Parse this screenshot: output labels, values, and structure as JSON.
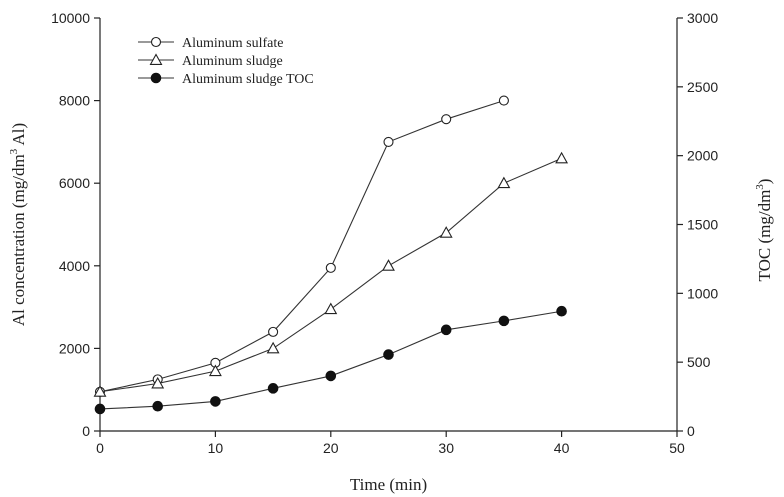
{
  "chart_data": {
    "type": "line",
    "xlabel": "Time (min)",
    "ylabel_left": {
      "text": "Al concentration (mg/dm",
      "sup": "3",
      "tail": " Al)"
    },
    "ylabel_right": {
      "text": "TOC (mg/dm",
      "sup": "3",
      "tail": ")"
    },
    "xlim": [
      0,
      50
    ],
    "ylim_left": [
      0,
      10000
    ],
    "ylim_right": [
      0,
      3000
    ],
    "x_ticks": [
      0,
      10,
      20,
      30,
      40,
      50
    ],
    "y_ticks_left": [
      0,
      2000,
      4000,
      6000,
      8000,
      10000
    ],
    "y_ticks_right": [
      0,
      500,
      1000,
      1500,
      2000,
      2500,
      3000
    ],
    "legend_position": "top-left",
    "grid": false,
    "series": [
      {
        "name": "Aluminum sulfate",
        "axis": "left",
        "marker": "circle-open",
        "x": [
          0,
          5,
          10,
          15,
          20,
          25,
          30,
          35
        ],
        "y": [
          950,
          1250,
          1650,
          2400,
          3950,
          7000,
          7550,
          8000
        ]
      },
      {
        "name": "Aluminum sludge",
        "axis": "left",
        "marker": "triangle-open",
        "x": [
          0,
          5,
          10,
          15,
          20,
          25,
          30,
          35,
          40
        ],
        "y": [
          950,
          1150,
          1450,
          2000,
          2950,
          4000,
          4800,
          6000,
          6600
        ]
      },
      {
        "name": "Aluminum sludge TOC",
        "axis": "right",
        "marker": "circle-filled",
        "x": [
          0,
          5,
          10,
          15,
          20,
          25,
          30,
          35,
          40
        ],
        "y": [
          160,
          180,
          215,
          310,
          400,
          555,
          735,
          800,
          870
        ]
      }
    ]
  }
}
